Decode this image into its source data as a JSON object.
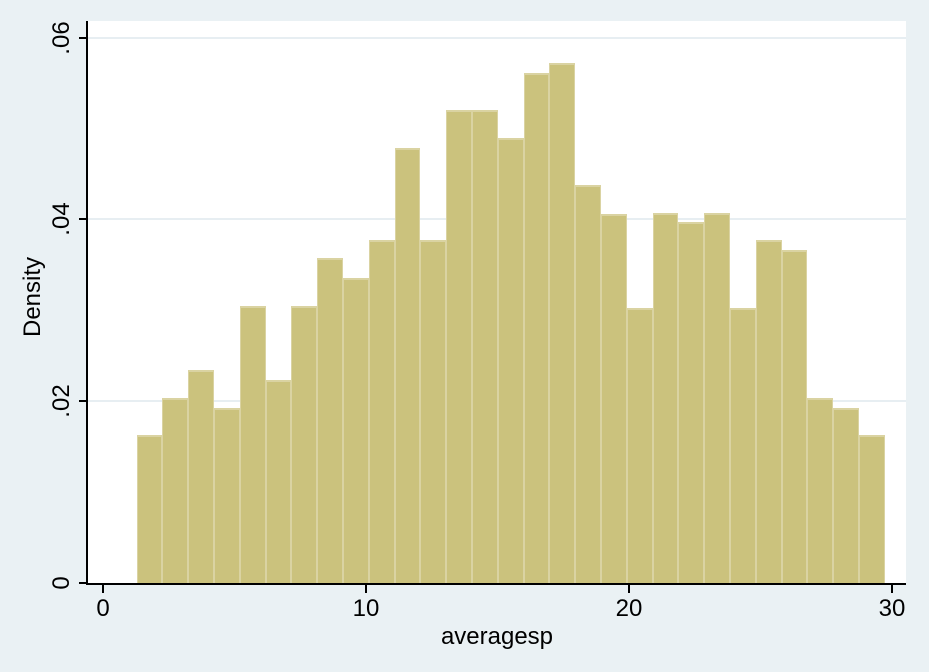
{
  "colors": {
    "background": "#eaf1f4",
    "plot_background": "#ffffff",
    "gridline": "#e7eef2",
    "bar_fill": "#cbc27d",
    "bar_border": "#dad3a2",
    "axis": "#000000"
  },
  "chart_data": {
    "type": "bar",
    "subtype": "histogram",
    "xlabel": "averagesp",
    "ylabel": "Density",
    "grid": true,
    "legend": "none",
    "xlim": [
      -0.57,
      30.53
    ],
    "ylim": [
      0,
      0.062
    ],
    "x_ticks": {
      "values": [
        0,
        10,
        20,
        30
      ],
      "labels": [
        "0",
        "10",
        "20",
        "30"
      ]
    },
    "y_ticks": {
      "values": [
        0,
        0.02,
        0.04,
        0.06
      ],
      "labels": [
        "0",
        ".02",
        ".04",
        ".06"
      ]
    },
    "bin_start": 1.28,
    "bin_width": 0.981,
    "values": [
      0.0163,
      0.0204,
      0.0234,
      0.0192,
      0.0305,
      0.0223,
      0.0305,
      0.0357,
      0.0335,
      0.0377,
      0.0478,
      0.0377,
      0.052,
      0.052,
      0.0489,
      0.0561,
      0.0572,
      0.0438,
      0.0406,
      0.0303,
      0.0407,
      0.0397,
      0.0407,
      0.0303,
      0.0377,
      0.0366,
      0.0204,
      0.0192,
      0.0163
    ]
  }
}
